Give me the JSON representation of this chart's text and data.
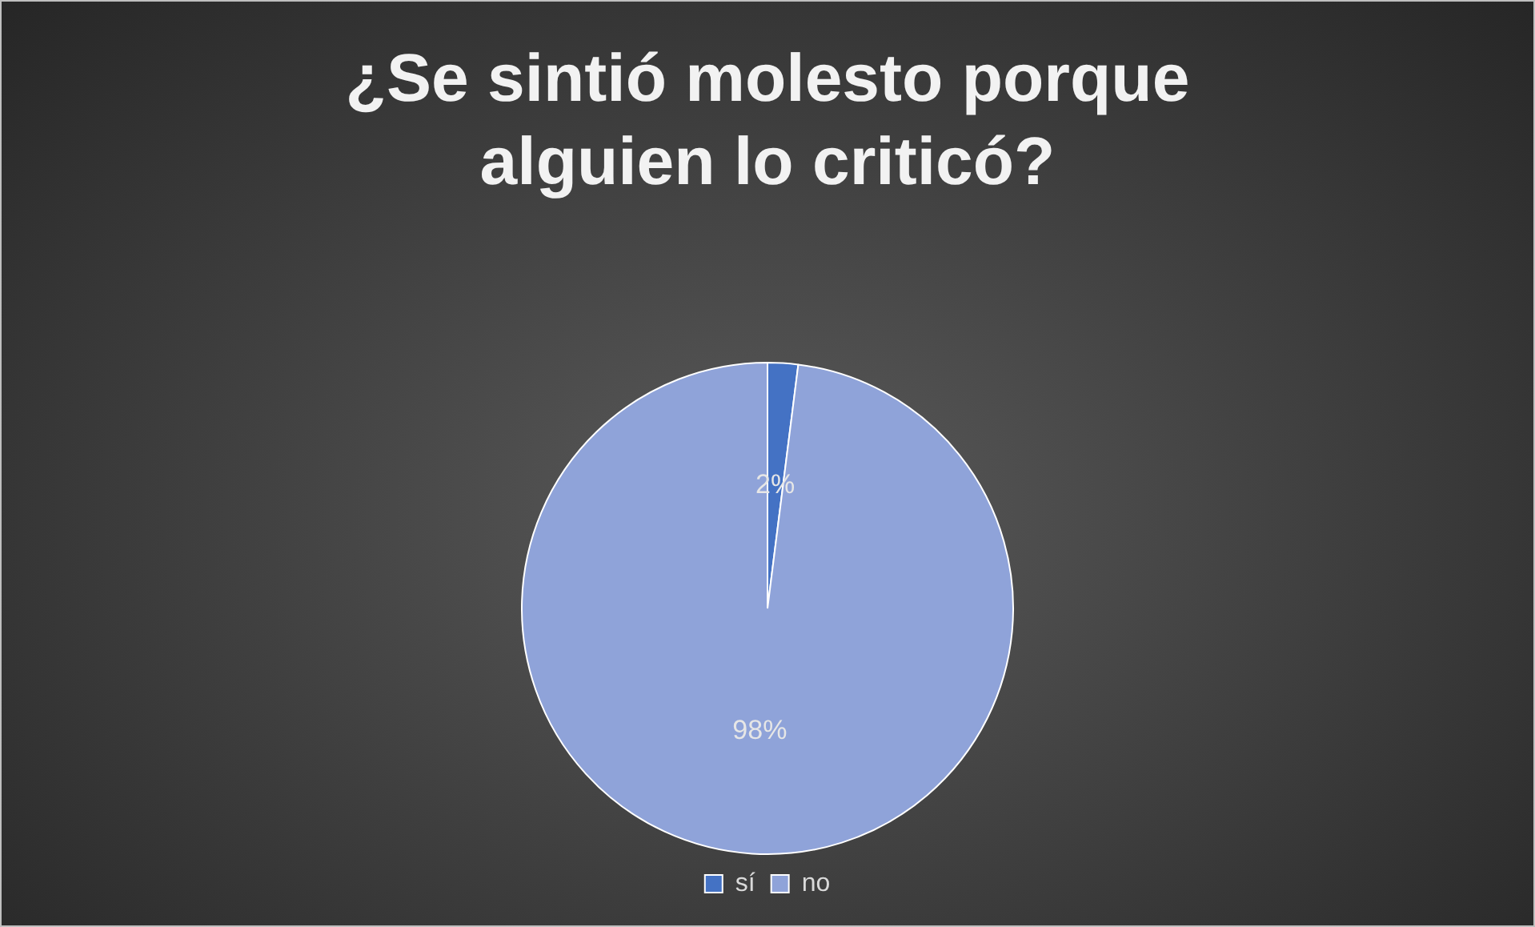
{
  "chart_data": {
    "type": "pie",
    "title": "¿Se sintió molesto porque alguien lo criticó?",
    "categories": [
      "sí",
      "no"
    ],
    "values": [
      2,
      98
    ],
    "colors": [
      "#4472c4",
      "#8fa3d9"
    ],
    "value_labels": [
      "2%",
      "98%"
    ],
    "legend": "bottom"
  }
}
